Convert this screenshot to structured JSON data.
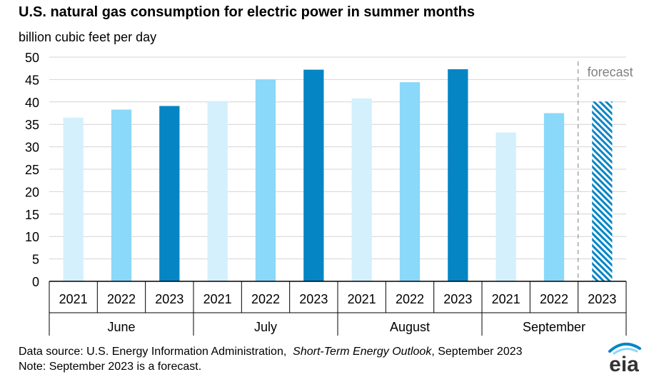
{
  "title": "U.S. natural gas consumption for electric power in summer months",
  "subtitle": "billion cubic feet per day",
  "footnote": {
    "source_prefix": "Data source: U.S. Energy Information Administration,",
    "source_title": "Short-Term Energy Outlook",
    "source_suffix": ", September 2023",
    "note": "Note: September 2023 is a forecast."
  },
  "logo_text": "eia",
  "chart_data": {
    "type": "bar",
    "title": "U.S. natural gas consumption for electric power in summer months",
    "ylabel": "billion cubic feet per day",
    "ylim": [
      0,
      50
    ],
    "yticks": [
      0,
      5,
      10,
      15,
      20,
      25,
      30,
      35,
      40,
      45,
      50
    ],
    "grid": true,
    "groups": [
      {
        "month": "June",
        "years": [
          "2021",
          "2022",
          "2023"
        ],
        "values": [
          36.5,
          38.3,
          39.1
        ]
      },
      {
        "month": "July",
        "years": [
          "2021",
          "2022",
          "2023"
        ],
        "values": [
          40.2,
          45.0,
          47.2
        ]
      },
      {
        "month": "August",
        "years": [
          "2021",
          "2022",
          "2023"
        ],
        "values": [
          40.8,
          44.4,
          47.3
        ]
      },
      {
        "month": "September",
        "years": [
          "2021",
          "2022",
          "2023"
        ],
        "values": [
          33.2,
          37.5,
          40.1
        ]
      }
    ],
    "year_colors": {
      "2021": "#d3f0fc",
      "2022": "#8ad8fa",
      "2023": "#0585c4"
    },
    "forecast": {
      "label": "forecast",
      "month": "September",
      "year": "2023",
      "style": "hatched"
    }
  }
}
